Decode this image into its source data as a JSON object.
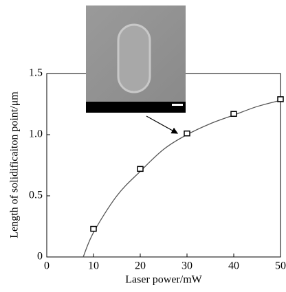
{
  "chart_data": {
    "type": "scatter",
    "xlabel": "Laser power/mW",
    "ylabel": "Length of solidificaiton point/μm",
    "xlim": [
      0,
      50
    ],
    "ylim": [
      0,
      1.5
    ],
    "xticks": [
      0,
      10,
      20,
      30,
      40,
      50
    ],
    "yticks": [
      0,
      0.5,
      {
        "value": 1,
        "label": "1.0"
      },
      1.5
    ],
    "series": [
      {
        "x": [
          10,
          20,
          30,
          40,
          50
        ],
        "values": [
          0.23,
          0.72,
          1.01,
          1.17,
          1.29
        ],
        "color": "#000000"
      },
      {
        "x": [
          7.8,
          10,
          15,
          20,
          25,
          30,
          35,
          40,
          45,
          50
        ],
        "values": [
          0,
          0.2,
          0.5,
          0.7,
          0.88,
          1.0,
          1.09,
          1.16,
          1.23,
          1.28
        ],
        "color": "#555555"
      }
    ]
  }
}
